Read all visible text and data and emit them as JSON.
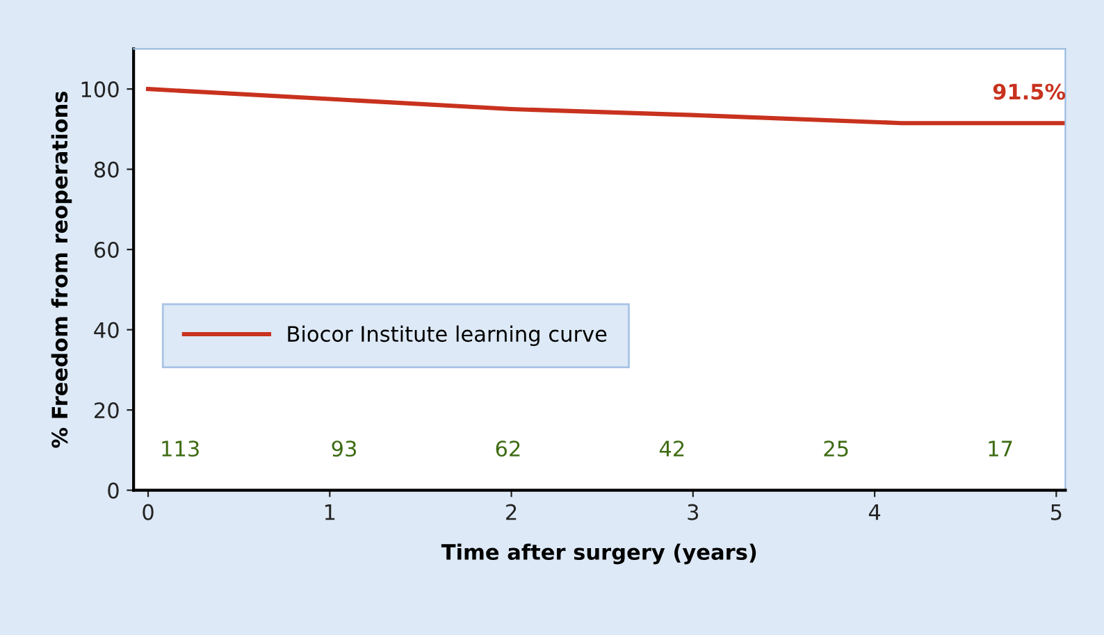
{
  "chart_data": {
    "type": "line",
    "xlabel": "Time after surgery (years)",
    "ylabel": "% Freedom from reoperations",
    "series": [
      {
        "name": "Biocor Institute learning curve",
        "color": "#c8321e",
        "x": [
          0,
          1,
          2,
          3,
          4.15,
          5.05
        ],
        "values": [
          100,
          97.5,
          95,
          93.5,
          91.5,
          91.5
        ]
      }
    ],
    "xlim": [
      -0.08,
      5.05
    ],
    "xticks": [
      0,
      1,
      2,
      3,
      4,
      5
    ],
    "ylim": [
      0,
      110
    ],
    "yticks": [
      0,
      20,
      40,
      60,
      80,
      100
    ],
    "grid": false,
    "legend": "center left",
    "marker": "none",
    "line_style": "solid",
    "annotations": [
      {
        "text": "91.5%",
        "x": 4.85,
        "y": 91.5
      },
      "113",
      "93",
      "62",
      "42",
      "25",
      "17"
    ]
  }
}
